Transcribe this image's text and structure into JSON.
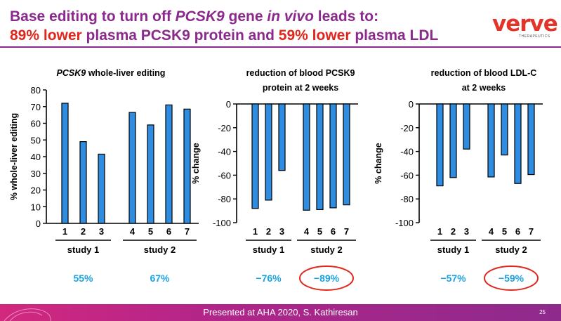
{
  "header": {
    "line1_a": "Base editing to turn off ",
    "line1_gene": "PCSK9",
    "line1_b": " gene ",
    "line1_invivo": "in vivo",
    "line1_c": " leads to:",
    "line2_a": "89% lower",
    "line2_b": " plasma PCSK9 protein and ",
    "line2_c": "59% lower",
    "line2_d": " plasma LDL"
  },
  "logo": {
    "word": "verve",
    "sub": "THERAPEUTICS"
  },
  "footer": {
    "text": "Presented at AHA 2020, S. Kathiresan",
    "page": "25"
  },
  "colors": {
    "bar": "#2e8de0",
    "summary": "#1aa4e0",
    "title": "#8a2a8c",
    "highlight": "#e1261c"
  },
  "chart_data": [
    {
      "type": "bar",
      "title_italic": "PCSK9",
      "title_rest": " whole-liver editing",
      "ylabel": "% whole-liver editing",
      "ylim": [
        0,
        80
      ],
      "yticks": [
        "0",
        "10",
        "20",
        "30",
        "40",
        "50",
        "60",
        "70",
        "80"
      ],
      "categories": [
        "1",
        "2",
        "3",
        "4",
        "5",
        "6",
        "7"
      ],
      "values": [
        72,
        49,
        41.5,
        66.5,
        59,
        71,
        68.5
      ],
      "groups": [
        {
          "label": "study 1",
          "summary": "55%",
          "circled": false
        },
        {
          "label": "study 2",
          "summary": "67%",
          "circled": false
        }
      ]
    },
    {
      "type": "bar",
      "title_line1": "reduction of blood PCSK9",
      "title_line2": "protein at 2 weeks",
      "ylabel": "% change",
      "ylim": [
        -100,
        0
      ],
      "yticks": [
        "0",
        "-20",
        "-40",
        "-60",
        "-80",
        "-100"
      ],
      "categories": [
        "1",
        "2",
        "3",
        "4",
        "5",
        "6",
        "7"
      ],
      "values": [
        -88,
        -81,
        -56,
        -89.5,
        -89,
        -87.5,
        -85
      ],
      "groups": [
        {
          "label": "study 1",
          "summary": "−76%",
          "circled": false
        },
        {
          "label": "study 2",
          "summary": "−89%",
          "circled": true
        }
      ]
    },
    {
      "type": "bar",
      "title_line1": "reduction of blood LDL-C",
      "title_line2": "at 2 weeks",
      "ylabel": "% change",
      "ylim": [
        -100,
        0
      ],
      "yticks": [
        "0",
        "-20",
        "-40",
        "-60",
        "-80",
        "-100"
      ],
      "categories": [
        "1",
        "2",
        "3",
        "4",
        "5",
        "6",
        "7"
      ],
      "values": [
        -69,
        -62,
        -38,
        -61.5,
        -43,
        -67,
        -59.5
      ],
      "groups": [
        {
          "label": "study 1",
          "summary": "−57%",
          "circled": false
        },
        {
          "label": "study 2",
          "summary": "−59%",
          "circled": true
        }
      ]
    }
  ]
}
